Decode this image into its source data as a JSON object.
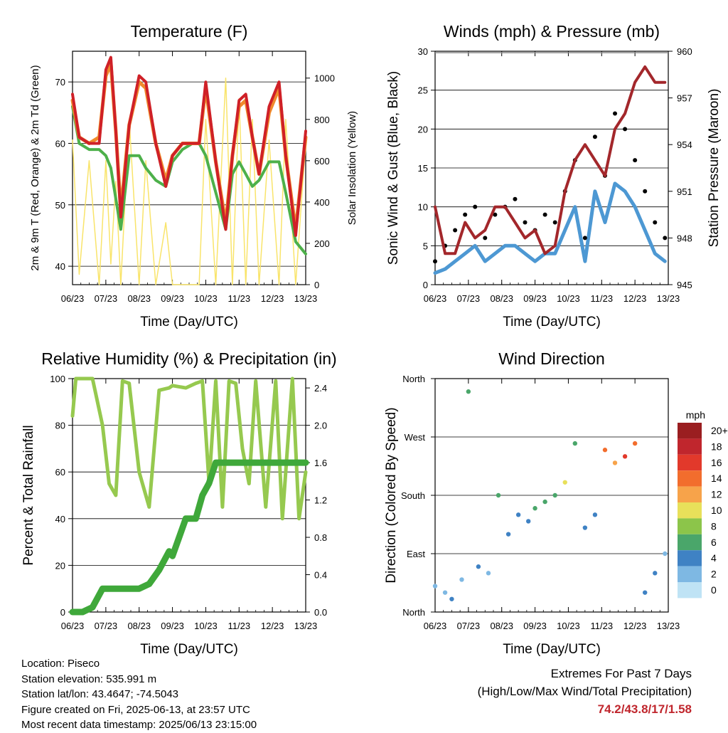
{
  "time_ticks": [
    "06/23",
    "07/23",
    "08/23",
    "09/23",
    "10/23",
    "11/23",
    "12/23",
    "13/23"
  ],
  "colors": {
    "t2m": "#cf2027",
    "t9m": "#f08a2c",
    "td": "#4db04a",
    "solar": "#f9e46a",
    "gust": "#000000",
    "wind": "#4d98d3",
    "pressure": "#a3272b",
    "rh": "#96c94f",
    "precip": "#3fa83a",
    "extremes": "#c0262d"
  },
  "chart_data": [
    {
      "type": "line",
      "title": "Temperature (F)",
      "xlabel": "Time (Day/UTC)",
      "ylabel": "2m & 9m T (Red, Orange) & 2m Td (Green)",
      "ylabel_right": "Solar Insolation (Yellow)",
      "ylim": [
        37,
        75
      ],
      "yticks": [
        40,
        50,
        60,
        70
      ],
      "ylim_right": [
        0,
        1130
      ],
      "yticks_right": [
        0,
        200,
        400,
        600,
        800,
        1000
      ],
      "grid": true,
      "x": [
        0,
        0.2,
        0.5,
        0.8,
        1,
        1.15,
        1.3,
        1.45,
        1.7,
        2,
        2.2,
        2.5,
        2.8,
        3,
        3.3,
        3.6,
        3.8,
        4,
        4.3,
        4.6,
        4.8,
        5,
        5.2,
        5.4,
        5.6,
        5.9,
        6.2,
        6.4,
        6.7,
        7
      ],
      "series": [
        {
          "name": "2m T",
          "values": [
            68,
            61,
            60,
            60,
            72,
            74,
            62,
            48,
            63,
            71,
            70,
            60,
            53,
            58,
            60,
            60,
            60,
            70,
            57,
            46,
            58,
            67,
            68,
            61,
            55,
            66,
            70,
            58,
            45,
            62
          ]
        },
        {
          "name": "9m T",
          "values": [
            67,
            61,
            60,
            61,
            71,
            73,
            62,
            49,
            63,
            70,
            69,
            60,
            54,
            58,
            60,
            60,
            60,
            69,
            57,
            47,
            58,
            66,
            67,
            61,
            55,
            65,
            69,
            58,
            46,
            61
          ]
        },
        {
          "name": "2m Td",
          "values": [
            66,
            60,
            59,
            59,
            58,
            56,
            51,
            46,
            58,
            58,
            56,
            54,
            53,
            57,
            59,
            60,
            60,
            58,
            52,
            46,
            55,
            57,
            55,
            53,
            54,
            57,
            57,
            52,
            44,
            42
          ]
        },
        {
          "name": "Solar",
          "axis": "right",
          "values": [
            700,
            50,
            600,
            0,
            600,
            100,
            500,
            0,
            800,
            0,
            600,
            0,
            300,
            0,
            0,
            0,
            0,
            800,
            0,
            1000,
            0,
            900,
            0,
            800,
            0,
            700,
            0,
            800,
            0,
            700
          ]
        }
      ]
    },
    {
      "type": "scatter",
      "title": "Winds (mph) & Pressure (mb)",
      "xlabel": "Time (Day/UTC)",
      "ylabel": "Sonic Wind & Gust (Blue, Black)",
      "ylabel_right": "Station Pressure (Maroon)",
      "ylim": [
        0,
        30
      ],
      "yticks": [
        0,
        5,
        10,
        15,
        20,
        25,
        30
      ],
      "ylim_right": [
        945,
        960
      ],
      "yticks_right": [
        945,
        948,
        951,
        954,
        957,
        960
      ],
      "grid": true,
      "x": [
        0,
        0.3,
        0.6,
        0.9,
        1.2,
        1.5,
        1.8,
        2.1,
        2.4,
        2.7,
        3,
        3.3,
        3.6,
        3.9,
        4.2,
        4.5,
        4.8,
        5.1,
        5.4,
        5.7,
        6,
        6.3,
        6.6,
        6.9
      ],
      "series": [
        {
          "name": "Gust",
          "values": [
            3,
            5,
            7,
            9,
            10,
            6,
            9,
            10,
            11,
            8,
            7,
            9,
            8,
            12,
            16,
            6,
            19,
            14,
            22,
            20,
            16,
            12,
            8,
            6
          ]
        },
        {
          "name": "Wind",
          "values": [
            1.5,
            2,
            3,
            4,
            5,
            3,
            4,
            5,
            5,
            4,
            3,
            4,
            4,
            7,
            10,
            3,
            12,
            8,
            13,
            12,
            10,
            7,
            4,
            3
          ]
        },
        {
          "name": "Pressure",
          "values": [
            950,
            947,
            947,
            949,
            948,
            948.5,
            950,
            950,
            949,
            948,
            948.5,
            947,
            947.5,
            951,
            953,
            954,
            953,
            952,
            955,
            956,
            958,
            959,
            958,
            958
          ]
        }
      ]
    },
    {
      "type": "line",
      "title": "Relative Humidity (%) & Precipitation (in)",
      "xlabel": "Time (Day/UTC)",
      "ylabel": "Percent & Total Rainfall",
      "ylim": [
        0,
        100
      ],
      "yticks": [
        0,
        20,
        40,
        60,
        80,
        100
      ],
      "ylim_right": [
        0,
        2.5
      ],
      "yticks_right": [
        0.0,
        0.4,
        0.8,
        1.2,
        1.6,
        2.0,
        2.4
      ],
      "grid": true,
      "x": [
        0,
        0.1,
        0.3,
        0.6,
        0.9,
        1.1,
        1.3,
        1.5,
        1.7,
        2,
        2.3,
        2.6,
        2.9,
        3,
        3.4,
        3.7,
        3.9,
        4.1,
        4.3,
        4.5,
        4.7,
        4.9,
        5.1,
        5.3,
        5.5,
        5.8,
        6.1,
        6.3,
        6.6,
        6.8,
        7
      ],
      "series": [
        {
          "name": "RH",
          "values": [
            84,
            100,
            100,
            100,
            80,
            55,
            50,
            99,
            98,
            60,
            45,
            95,
            96,
            97,
            96,
            98,
            99,
            55,
            99,
            45,
            99,
            98,
            70,
            55,
            99,
            45,
            99,
            40,
            100,
            40,
            60
          ]
        },
        {
          "name": "Precipitation",
          "axis": "right",
          "values": [
            0,
            0,
            0,
            0.05,
            0.25,
            0.25,
            0.25,
            0.25,
            0.25,
            0.25,
            0.3,
            0.45,
            0.65,
            0.6,
            1.0,
            1.0,
            1.25,
            1.38,
            1.6,
            1.6,
            1.6,
            1.6,
            1.6,
            1.6,
            1.6,
            1.6,
            1.6,
            1.6,
            1.6,
            1.6,
            1.6
          ]
        }
      ]
    },
    {
      "type": "scatter",
      "title": "Wind Direction",
      "xlabel": "Time (Day/UTC)",
      "ylabel": "Direction (Colored By Speed)",
      "ylim": [
        0,
        360
      ],
      "yticks": [
        "North",
        "East",
        "South",
        "West",
        "North"
      ],
      "colorbar": {
        "unit": "mph",
        "labels": [
          "20+",
          "18",
          "16",
          "14",
          "12",
          "10",
          "8",
          "6",
          "4",
          "2",
          "0"
        ],
        "colors": [
          "#9a1e20",
          "#c0262d",
          "#e2392b",
          "#f26d2d",
          "#f7a34a",
          "#e8e05a",
          "#8cc54a",
          "#4aa66a",
          "#3f82c4",
          "#7eb8e3",
          "#bfe3f5"
        ]
      },
      "grid": true,
      "x": [
        0,
        0.3,
        0.5,
        0.8,
        1,
        1.3,
        1.6,
        1.9,
        2.2,
        2.5,
        2.8,
        3,
        3.3,
        3.6,
        3.9,
        4.2,
        4.5,
        4.8,
        5.1,
        5.4,
        5.7,
        6,
        6.3,
        6.6,
        6.9
      ],
      "values": [
        40,
        30,
        20,
        50,
        340,
        70,
        60,
        180,
        120,
        150,
        140,
        160,
        170,
        180,
        200,
        260,
        130,
        150,
        250,
        230,
        240,
        260,
        30,
        60,
        90
      ],
      "speeds": [
        1,
        2,
        3,
        2,
        6,
        3,
        2,
        5,
        4,
        3,
        4,
        5,
        6,
        5,
        9,
        5,
        3,
        4,
        14,
        12,
        15,
        13,
        3,
        4,
        2
      ]
    }
  ],
  "footer": {
    "location": "Location: Piseco",
    "elevation": "Station elevation: 535.991 m",
    "latlon": "Station lat/lon: 43.4647; -74.5043",
    "created": "Figure created on Fri, 2025-06-13, at 23:57 UTC",
    "recent": "Most recent data timestamp: 2025/06/13 23:15:00"
  },
  "extremes": {
    "title": "Extremes For Past 7 Days",
    "subtitle": "(High/Low/Max Wind/Total Precipitation)",
    "values": "74.2/43.8/17/1.58"
  }
}
